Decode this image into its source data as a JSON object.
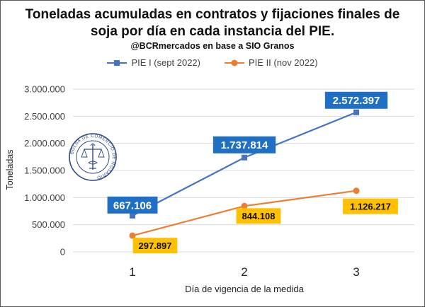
{
  "header": {
    "title_line1": "Toneladas acumuladas en contratos y fijaciones finales de",
    "title_line2": "soja por día en cada instancia del PIE.",
    "subtitle": "@BCRmercados en base a SIO Granos"
  },
  "logo": {
    "text": "BOLSA DE COMERCIO DE ROSARIO"
  },
  "colors": {
    "series1": "#4472C4",
    "series1_label_bg": "#1F6FC5",
    "series2": "#ED7D31",
    "series2_label_bg": "#FFC000",
    "grid": "#d9d9d9",
    "axis_text": "#404040"
  },
  "chart_data": {
    "type": "line",
    "title": "Toneladas acumuladas en contratos y fijaciones finales de soja por día en cada instancia del PIE.",
    "subtitle": "@BCRmercados en base a SIO Granos",
    "xlabel": "Día de vigencia de la medida",
    "ylabel": "Toneladas",
    "x": [
      1,
      2,
      3
    ],
    "x_tick_labels": [
      "1",
      "2",
      "3"
    ],
    "ylim": [
      0,
      3000000
    ],
    "y_ticks": [
      0,
      500000,
      1000000,
      1500000,
      2000000,
      2500000,
      3000000
    ],
    "y_tick_labels": [
      "0",
      "500.000",
      "1.000.000",
      "1.500.000",
      "2.000.000",
      "2.500.000",
      "3.000.000"
    ],
    "grid": true,
    "legend_position": "top",
    "series": [
      {
        "name": "PIE I (sept 2022)",
        "marker": "square",
        "values": [
          667106,
          1737814,
          2572397
        ],
        "data_labels": [
          "667.106",
          "1.737.814",
          "2.572.397"
        ]
      },
      {
        "name": "PIE II (nov 2022)",
        "marker": "circle",
        "values": [
          297897,
          844108,
          1126217
        ],
        "data_labels": [
          "297.897",
          "844.108",
          "1.126.217"
        ]
      }
    ]
  }
}
